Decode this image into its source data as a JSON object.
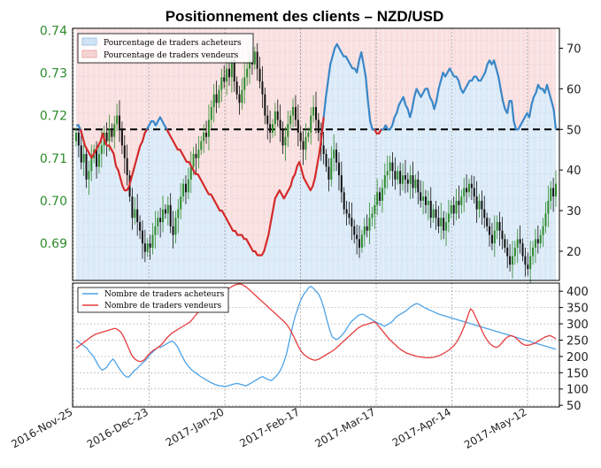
{
  "title": "Positionnement des clients – NZD/USD",
  "colors": {
    "buy_line": "#3a87c8",
    "sell_line": "#d42a2a",
    "buy_fill": "#cfe3f5",
    "sell_fill": "#f7d4d4",
    "candle_up": "#2e8b2e",
    "candle_down": "#111111",
    "left_axis_text": "#2e8b2e",
    "count_buy_line": "#4ea3e6",
    "count_sell_line": "#e63c3c"
  },
  "chart_data": [
    {
      "type": "line",
      "panel": "top",
      "legend": [
        "Pourcentage de traders acheteurs",
        "Pourcentage de traders vendeurs"
      ],
      "legend_position": "top-left",
      "x_labels": [
        "2016-Nov-25",
        "2016-Dec-23",
        "2017-Jan-20",
        "2017-Feb-17",
        "2017-Mar-17",
        "2017-Apr-14",
        "2017-May-12"
      ],
      "left_axis": {
        "ticks": [
          0.69,
          0.7,
          0.71,
          0.72,
          0.73,
          0.74
        ],
        "range": [
          0.6813,
          0.7405
        ]
      },
      "right_axis": {
        "ticks": [
          20,
          30,
          40,
          50,
          60,
          70
        ],
        "range": [
          12.8,
          74.9
        ]
      },
      "reference_line": 50,
      "grid": true,
      "series_buy_pct": [
        51,
        51,
        50,
        48,
        46,
        45,
        44,
        43,
        44,
        45,
        46,
        47,
        49,
        47,
        46,
        46,
        45,
        44,
        41,
        40,
        38,
        36,
        35,
        35,
        36,
        38,
        40,
        42,
        44,
        46,
        47,
        49,
        50,
        51,
        52,
        52,
        51,
        52,
        53,
        52,
        51,
        50,
        49,
        48,
        47,
        46,
        45,
        45,
        44,
        43,
        42,
        42,
        41,
        40,
        39,
        39,
        38,
        37,
        36,
        35,
        34,
        34,
        33,
        32,
        31,
        30,
        30,
        29,
        28,
        27,
        26,
        25,
        25,
        24,
        24,
        24,
        23,
        23,
        22,
        21,
        20,
        20,
        19,
        19,
        19,
        20,
        22,
        24,
        27,
        30,
        33,
        34,
        35,
        34,
        33,
        34,
        35,
        36,
        38,
        39,
        41,
        42,
        40,
        38,
        37,
        36,
        35,
        36,
        38,
        41,
        44,
        48,
        53,
        58,
        62,
        66,
        68,
        70,
        71,
        70,
        69,
        68,
        68,
        67,
        66,
        65,
        65,
        64,
        67,
        69,
        66,
        63,
        57,
        52,
        50,
        50,
        49,
        49,
        50,
        50,
        51,
        50,
        50,
        51,
        53,
        54,
        56,
        57,
        58,
        56,
        55,
        53,
        55,
        58,
        60,
        59,
        58,
        59,
        60,
        60,
        58,
        57,
        55,
        57,
        60,
        62,
        64,
        63,
        64,
        65,
        64,
        63,
        63,
        62,
        60,
        59,
        60,
        61,
        62,
        62,
        63,
        63,
        62,
        62,
        63,
        64,
        66,
        67,
        66,
        67,
        65,
        63,
        60,
        57,
        55,
        54,
        57,
        57,
        52,
        50,
        50,
        51,
        52,
        53,
        54,
        53,
        56,
        58,
        59,
        61,
        60,
        60,
        59,
        61,
        59,
        57,
        55,
        50
      ],
      "series_sell_pct": [
        49,
        49,
        50,
        52,
        54,
        55,
        56,
        57,
        56,
        55,
        54,
        53,
        51,
        53,
        54,
        54,
        55,
        56,
        59,
        60,
        62,
        64,
        65,
        65,
        64,
        62,
        60,
        58,
        56,
        54,
        53,
        51,
        50,
        49,
        48,
        48,
        49,
        48,
        47,
        48,
        49,
        50,
        51,
        52,
        53,
        54,
        55,
        55,
        56,
        57,
        58,
        58,
        59,
        60,
        61,
        61,
        62,
        63,
        64,
        65,
        66,
        66,
        67,
        68,
        69,
        70,
        70,
        71,
        72,
        73,
        74,
        75,
        75,
        76,
        76,
        76,
        77,
        77,
        78,
        79,
        80,
        80,
        81,
        81,
        81,
        80,
        78,
        76,
        73,
        70,
        67,
        66,
        65,
        66,
        67,
        66,
        65,
        64,
        62,
        61,
        59,
        58,
        60,
        62,
        63,
        64,
        65,
        64,
        62,
        59,
        56,
        52,
        47,
        42,
        38,
        34,
        32,
        30,
        29,
        30,
        31,
        32,
        32,
        33,
        34,
        35,
        35,
        36,
        33,
        31,
        34,
        37,
        43,
        48,
        50,
        50,
        51,
        51,
        50,
        50,
        49,
        50,
        50,
        49,
        47,
        46,
        44,
        43,
        42,
        44,
        45,
        47,
        45,
        42,
        40,
        41,
        42,
        41,
        40,
        40,
        42,
        43,
        45,
        43,
        40,
        38,
        36,
        37,
        36,
        35,
        36,
        37,
        37,
        38,
        40,
        41,
        40,
        39,
        38,
        38,
        37,
        37,
        38,
        38,
        37,
        36,
        34,
        33,
        34,
        33,
        35,
        37,
        40,
        43,
        45,
        46,
        43,
        43,
        48,
        50,
        50,
        49,
        48,
        47,
        46,
        47,
        44,
        42,
        41,
        39,
        40,
        40,
        41,
        39,
        41,
        43,
        45,
        50
      ],
      "price_closes": [
        0.716,
        0.713,
        0.709,
        0.711,
        0.705,
        0.707,
        0.71,
        0.712,
        0.708,
        0.711,
        0.713,
        0.716,
        0.714,
        0.717,
        0.715,
        0.718,
        0.72,
        0.717,
        0.713,
        0.71,
        0.706,
        0.701,
        0.696,
        0.698,
        0.695,
        0.693,
        0.69,
        0.688,
        0.69,
        0.689,
        0.692,
        0.694,
        0.696,
        0.695,
        0.698,
        0.697,
        0.699,
        0.694,
        0.692,
        0.696,
        0.698,
        0.701,
        0.704,
        0.702,
        0.705,
        0.708,
        0.711,
        0.71,
        0.712,
        0.714,
        0.716,
        0.715,
        0.719,
        0.722,
        0.725,
        0.723,
        0.726,
        0.729,
        0.728,
        0.731,
        0.729,
        0.733,
        0.728,
        0.725,
        0.723,
        0.726,
        0.729,
        0.731,
        0.733,
        0.732,
        0.735,
        0.731,
        0.728,
        0.725,
        0.72,
        0.718,
        0.716,
        0.718,
        0.721,
        0.719,
        0.717,
        0.713,
        0.715,
        0.718,
        0.72,
        0.722,
        0.719,
        0.716,
        0.714,
        0.712,
        0.715,
        0.716,
        0.72,
        0.722,
        0.719,
        0.716,
        0.713,
        0.711,
        0.708,
        0.705,
        0.71,
        0.712,
        0.709,
        0.706,
        0.702,
        0.698,
        0.697,
        0.696,
        0.694,
        0.692,
        0.691,
        0.689,
        0.692,
        0.694,
        0.693,
        0.696,
        0.697,
        0.699,
        0.702,
        0.7,
        0.703,
        0.706,
        0.707,
        0.709,
        0.707,
        0.705,
        0.707,
        0.704,
        0.706,
        0.705,
        0.704,
        0.706,
        0.703,
        0.705,
        0.702,
        0.7,
        0.701,
        0.699,
        0.7,
        0.696,
        0.698,
        0.696,
        0.694,
        0.696,
        0.693,
        0.695,
        0.697,
        0.699,
        0.697,
        0.7,
        0.699,
        0.701,
        0.703,
        0.702,
        0.704,
        0.703,
        0.701,
        0.698,
        0.7,
        0.698,
        0.696,
        0.694,
        0.692,
        0.69,
        0.693,
        0.695,
        0.693,
        0.691,
        0.689,
        0.687,
        0.685,
        0.687,
        0.689,
        0.691,
        0.69,
        0.687,
        0.685,
        0.684,
        0.687,
        0.689,
        0.691,
        0.69,
        0.692,
        0.694,
        0.697,
        0.7,
        0.703,
        0.701,
        0.704
      ]
    },
    {
      "type": "line",
      "panel": "bottom",
      "legend": [
        "Nombre de traders acheteurs",
        "Nombre de traders vendeurs"
      ],
      "legend_position": "top-left",
      "right_axis": {
        "ticks": [
          50,
          100,
          150,
          200,
          250,
          300,
          350,
          400
        ],
        "range": [
          45,
          425
        ]
      },
      "grid": true,
      "series_buy_count": [
        250,
        245,
        240,
        235,
        230,
        225,
        215,
        208,
        200,
        188,
        175,
        165,
        158,
        162,
        166,
        176,
        185,
        192,
        184,
        172,
        162,
        152,
        144,
        138,
        136,
        142,
        150,
        158,
        162,
        170,
        176,
        182,
        188,
        196,
        206,
        212,
        218,
        224,
        230,
        228,
        232,
        236,
        240,
        244,
        246,
        244,
        236,
        226,
        212,
        198,
        186,
        176,
        168,
        160,
        155,
        150,
        145,
        140,
        136,
        132,
        128,
        124,
        120,
        117,
        114,
        112,
        110,
        110,
        108,
        108,
        110,
        112,
        114,
        116,
        117,
        116,
        114,
        112,
        110,
        112,
        116,
        120,
        124,
        128,
        132,
        136,
        138,
        134,
        130,
        128,
        126,
        132,
        138,
        146,
        156,
        170,
        188,
        210,
        240,
        270,
        300,
        325,
        345,
        365,
        380,
        392,
        400,
        410,
        415,
        411,
        404,
        396,
        388,
        372,
        350,
        326,
        300,
        278,
        260,
        256,
        252,
        256,
        262,
        270,
        278,
        290,
        300,
        308,
        314,
        320,
        326,
        328,
        330,
        326,
        322,
        318,
        314,
        310,
        306,
        302,
        300,
        296,
        292,
        296,
        300,
        304,
        310,
        318,
        324,
        328,
        332,
        336,
        340,
        346,
        352,
        356,
        360,
        362,
        360,
        356,
        352,
        348,
        345,
        342,
        339,
        336,
        333,
        330,
        328,
        326,
        324,
        322,
        320,
        318,
        316,
        314,
        312,
        310,
        308,
        306,
        304,
        302,
        300,
        298,
        296,
        294,
        292,
        290,
        288,
        286,
        284,
        282,
        280,
        278,
        276,
        274,
        272,
        270,
        268,
        266,
        264,
        262,
        260,
        258,
        256,
        254,
        252,
        250,
        248,
        246,
        244,
        242,
        240,
        238,
        236,
        234,
        232,
        230,
        228,
        226,
        224,
        222
      ],
      "series_sell_count": [
        225,
        230,
        235,
        240,
        245,
        250,
        255,
        260,
        264,
        268,
        270,
        272,
        274,
        276,
        278,
        280,
        282,
        284,
        286,
        284,
        280,
        274,
        264,
        250,
        235,
        220,
        205,
        196,
        190,
        186,
        184,
        186,
        190,
        198,
        206,
        212,
        218,
        222,
        226,
        230,
        236,
        244,
        252,
        260,
        266,
        272,
        276,
        280,
        284,
        288,
        292,
        296,
        300,
        304,
        310,
        318,
        326,
        334,
        342,
        350,
        356,
        362,
        368,
        374,
        378,
        382,
        386,
        390,
        394,
        398,
        402,
        406,
        410,
        414,
        418,
        420,
        422,
        422,
        420,
        416,
        412,
        406,
        400,
        394,
        388,
        382,
        376,
        370,
        364,
        358,
        352,
        346,
        340,
        334,
        328,
        322,
        316,
        310,
        304,
        296,
        286,
        274,
        262,
        248,
        234,
        222,
        212,
        205,
        200,
        196,
        192,
        190,
        188,
        190,
        192,
        196,
        200,
        204,
        208,
        212,
        216,
        220,
        226,
        232,
        238,
        244,
        250,
        256,
        262,
        268,
        274,
        280,
        286,
        290,
        294,
        296,
        298,
        300,
        302,
        304,
        306,
        300,
        292,
        284,
        276,
        268,
        260,
        252,
        246,
        240,
        234,
        228,
        222,
        218,
        214,
        210,
        208,
        206,
        204,
        202,
        200,
        199,
        198,
        197,
        196,
        196,
        196,
        197,
        198,
        200,
        202,
        205,
        208,
        212,
        216,
        220,
        226,
        232,
        240,
        250,
        262,
        276,
        292,
        310,
        330,
        346,
        340,
        326,
        312,
        298,
        284,
        270,
        258,
        248,
        240,
        234,
        230,
        228,
        230,
        236,
        244,
        252,
        258,
        262,
        264,
        262,
        258,
        252,
        246,
        240,
        236,
        234,
        234,
        236,
        238,
        240,
        244,
        248,
        252,
        256,
        260,
        262,
        264,
        262,
        258,
        254
      ]
    }
  ]
}
